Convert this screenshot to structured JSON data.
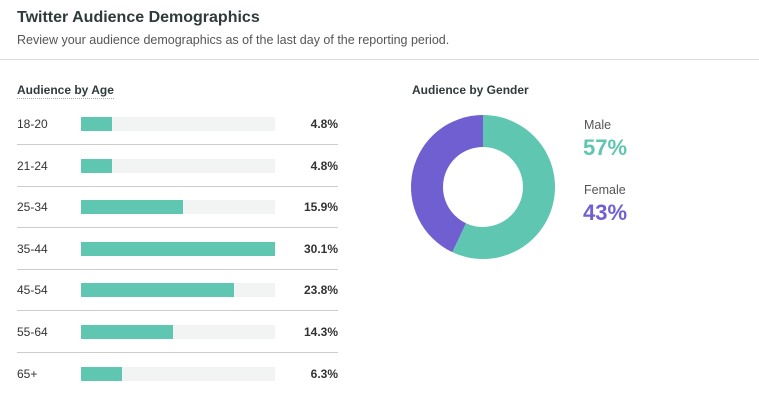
{
  "header": {
    "title": "Twitter Audience Demographics",
    "subtitle": "Review your audience demographics as of the last day of the reporting period."
  },
  "chart_data": [
    {
      "type": "bar",
      "title": "Audience by Age",
      "orientation": "horizontal",
      "categories": [
        "18-20",
        "21-24",
        "25-34",
        "35-44",
        "45-54",
        "55-64",
        "65+"
      ],
      "values": [
        4.8,
        4.8,
        15.9,
        30.1,
        23.8,
        14.3,
        6.3
      ],
      "labels": [
        "4.8%",
        "4.8%",
        "15.9%",
        "30.1%",
        "23.8%",
        "14.3%",
        "6.3%"
      ],
      "color": "#5ec6b1",
      "track_color": "#f2f3f3"
    },
    {
      "type": "pie",
      "variant": "donut",
      "title": "Audience by Gender",
      "slices": [
        {
          "name": "Male",
          "value": 57,
          "label": "57%",
          "color": "#5ec6b1"
        },
        {
          "name": "Female",
          "value": 43,
          "label": "43%",
          "color": "#6f5fd1"
        }
      ]
    }
  ]
}
